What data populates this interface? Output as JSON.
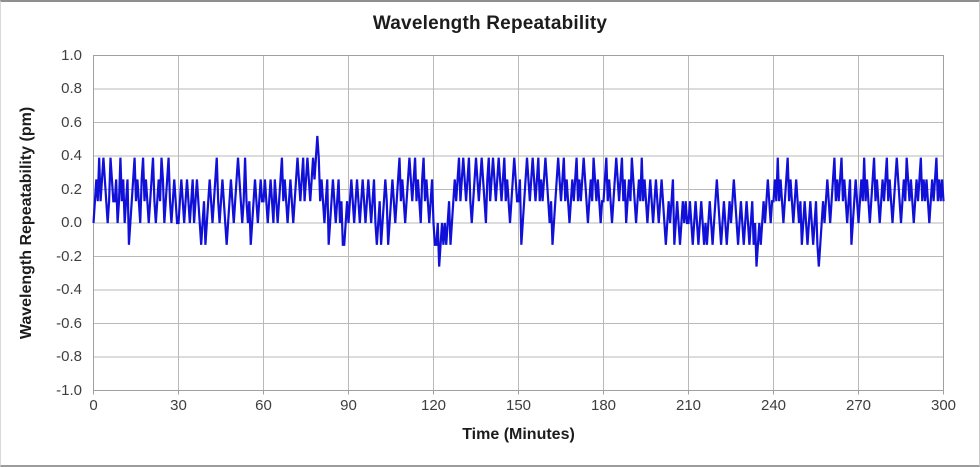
{
  "frame": {
    "background": "#ffffff",
    "border_color": "#9c9c9c"
  },
  "chart_data": {
    "type": "line",
    "title": "Wavelength Repeatability",
    "xlabel": "Time (Minutes)",
    "ylabel": "Wavelength Repeatability (pm)",
    "xlim": [
      0,
      300
    ],
    "ylim": [
      -1.0,
      1.0
    ],
    "x_tick_labels": [
      "0",
      "30",
      "60",
      "90",
      "120",
      "150",
      "180",
      "210",
      "240",
      "270",
      "300"
    ],
    "y_tick_labels": [
      "1.0",
      "0.8",
      "0.6",
      "0.4",
      "0.2",
      "0.0",
      "-0.2",
      "-0.4",
      "-0.6",
      "-0.8",
      "-1.0"
    ],
    "grid": "on",
    "legend": "none",
    "line_color": "#1010d8",
    "grid_color": "#b9b9b9",
    "axis_color": "#a0a0a0",
    "tick_label_color": "#3f3f3f",
    "series": [
      {
        "name": "Wavelength Repeatability",
        "x_start": 0,
        "x_step_minutes": 0.5,
        "values": [
          0,
          0.13,
          0.26,
          0.13,
          0.39,
          0.13,
          0.26,
          0.39,
          0.26,
          0.13,
          0,
          0.13,
          0.39,
          0.26,
          0.13,
          0.13,
          0.26,
          0,
          0.13,
          0.39,
          0.13,
          0.26,
          0,
          0.13,
          0.26,
          -0.13,
          0,
          0.13,
          0.26,
          0.39,
          0.13,
          0.26,
          0.13,
          0,
          0.26,
          0.39,
          0.13,
          0.26,
          0.13,
          0,
          0.13,
          0.26,
          0.39,
          0.13,
          0,
          0.13,
          0.26,
          0.13,
          0.39,
          0.26,
          0,
          0.13,
          0.26,
          0.39,
          0.13,
          0,
          0.13,
          0.26,
          0.13,
          0,
          0,
          0.13,
          0.26,
          0.13,
          0,
          0.13,
          0.26,
          0.13,
          0,
          0.13,
          0.26,
          0,
          0.13,
          0.26,
          0.13,
          0,
          -0.13,
          0,
          0.13,
          -0.13,
          0,
          0.13,
          0.26,
          0.13,
          0,
          0.13,
          0.26,
          0.39,
          0.13,
          0,
          0.13,
          0.26,
          0.13,
          0,
          -0.13,
          0,
          0.13,
          0.26,
          0.13,
          0,
          0.13,
          0.26,
          0.39,
          0.26,
          0.13,
          0,
          0.13,
          0.39,
          0.13,
          0,
          0.13,
          -0.13,
          0,
          0.13,
          0.26,
          0.13,
          0,
          0.13,
          0.26,
          0.13,
          0.13,
          0.26,
          0.13,
          0,
          0.13,
          0.26,
          0.13,
          0,
          0.26,
          0.13,
          0,
          0.13,
          0.26,
          0.39,
          0.13,
          0.26,
          0.13,
          0,
          0.13,
          0.26,
          0.13,
          0,
          0.13,
          0.26,
          0.39,
          0.26,
          0.13,
          0.26,
          0.39,
          0.13,
          0.26,
          0.39,
          0.26,
          0.13,
          0.26,
          0.39,
          0.26,
          0.39,
          0.52,
          0.39,
          0.13,
          0.26,
          0.13,
          0,
          0.13,
          0.26,
          -0.13,
          0,
          0.13,
          0.26,
          0.13,
          0,
          0.13,
          0.26,
          0,
          0.13,
          -0.13,
          -0.13,
          0,
          0.13,
          0,
          0.13,
          0.26,
          0.13,
          0,
          0.13,
          0.26,
          0.13,
          0,
          0.13,
          0.26,
          0.13,
          0,
          0.13,
          0.26,
          0.13,
          0,
          0.13,
          0.26,
          0,
          -0.13,
          0,
          0.13,
          -0.13,
          0,
          0.13,
          0.26,
          0.13,
          -0.13,
          0,
          0.13,
          0.26,
          0.13,
          0,
          0.13,
          0.26,
          0.39,
          0.13,
          0.26,
          0.13,
          0,
          0.13,
          0.26,
          0.39,
          0.26,
          0.13,
          0.26,
          0.39,
          0.13,
          0.26,
          0.13,
          0,
          0.26,
          0.39,
          0.13,
          0.26,
          0.13,
          0,
          0.13,
          0.26,
          0,
          -0.13,
          -0.13,
          0,
          -0.26,
          -0.13,
          0,
          -0.13,
          0,
          -0.13,
          0,
          0.13,
          -0.13,
          0,
          0.13,
          0.26,
          0.13,
          0.26,
          0.39,
          0.13,
          0.26,
          0.39,
          0.26,
          0.13,
          0.26,
          0.39,
          0.13,
          0,
          0.13,
          0.26,
          0.39,
          0.26,
          0.13,
          0.26,
          0.39,
          0.26,
          0.13,
          0,
          0.26,
          0.39,
          0.13,
          0.26,
          0.39,
          0.26,
          0.13,
          0.26,
          0.39,
          0.26,
          0.13,
          0.26,
          0.39,
          0.13,
          0.26,
          0.13,
          0,
          0.13,
          0.26,
          0.39,
          0.26,
          0.13,
          0.13,
          0.26,
          -0.13,
          0,
          0.13,
          0.26,
          0.39,
          0.26,
          0.13,
          0.26,
          0.39,
          0.26,
          0.13,
          0.26,
          0.39,
          0.13,
          0.26,
          0.13,
          0.26,
          0.39,
          0.26,
          0.13,
          0,
          0.13,
          -0.13,
          0,
          0.13,
          0.26,
          0.39,
          0.26,
          0.13,
          0.26,
          0.39,
          0.13,
          0.26,
          0.13,
          0,
          0.13,
          0.26,
          0.13,
          0.26,
          0.39,
          0.13,
          0.26,
          0.13,
          0.26,
          0.39,
          0.26,
          0.13,
          0,
          0.13,
          0.26,
          0.13,
          0.39,
          0.26,
          0.13,
          0.26,
          0.13,
          0,
          0.13,
          0.13,
          0.26,
          0.39,
          0.13,
          0.26,
          0.13,
          0,
          0.13,
          0.26,
          0.39,
          0.26,
          0.13,
          0.26,
          0.39,
          0.13,
          0.26,
          0,
          0.13,
          0.26,
          0.13,
          0.39,
          0.26,
          0.13,
          0,
          0.13,
          0.26,
          0.13,
          0.39,
          0.13,
          0.26,
          0.13,
          0,
          0.13,
          0.26,
          0.13,
          0,
          0.13,
          0.26,
          0.13,
          0,
          0.13,
          0.26,
          0.13,
          0,
          -0.13,
          0,
          0.13,
          0,
          0.13,
          0.26,
          -0.13,
          0,
          0.13,
          0,
          -0.13,
          0,
          0.13,
          0,
          0.13,
          0,
          0,
          0.13,
          0,
          -0.13,
          0,
          0.13,
          0,
          -0.13,
          0,
          0.13,
          0,
          -0.13,
          0,
          -0.13,
          0,
          0.13,
          0,
          -0.13,
          0,
          0.13,
          0.26,
          0.13,
          0,
          -0.13,
          0,
          0.13,
          0,
          -0.13,
          0,
          0.13,
          0,
          0.13,
          0.26,
          0.13,
          0,
          -0.13,
          0,
          0.13,
          0,
          -0.13,
          0,
          0.13,
          0,
          -0.13,
          0,
          0.13,
          -0.13,
          0,
          -0.26,
          -0.13,
          0,
          -0.13,
          0,
          0.13,
          0,
          0.13,
          0.26,
          0.13,
          0,
          0.13,
          0.13,
          0.26,
          0.13,
          0.39,
          0.13,
          0.26,
          0.13,
          0,
          0.13,
          0.26,
          0.39,
          0.13,
          0.26,
          0.13,
          0,
          0.13,
          0.26,
          0.13,
          0,
          0.13,
          -0.13,
          0,
          0.13,
          0,
          -0.13,
          0,
          0.13,
          0,
          -0.13,
          0,
          0.13,
          -0.13,
          -0.26,
          -0.13,
          0,
          0.13,
          0,
          0.13,
          0.26,
          0.13,
          0,
          0.13,
          0.26,
          0.39,
          0.13,
          0.26,
          0.13,
          0.26,
          0.39,
          0.13,
          0.26,
          0.13,
          0,
          0.13,
          0.26,
          -0.13,
          0,
          0.13,
          0.26,
          0.13,
          0,
          0.13,
          0.26,
          0.13,
          0.39,
          0.13,
          0.26,
          0.13,
          0,
          0.13,
          0.26,
          0.39,
          0.13,
          0.26,
          0.13,
          0,
          0.13,
          0.26,
          0.13,
          0.26,
          0.39,
          0.13,
          0.26,
          0.13,
          0,
          0.13,
          0.26,
          0.39,
          0.26,
          0.13,
          0,
          0.13,
          0.26,
          0.13,
          0.39,
          0.26,
          0.13,
          0.26,
          0.13,
          0,
          0.13,
          0.26,
          0.13,
          0.26,
          0.39,
          0.13,
          0.26,
          0.13,
          0.26,
          0.13,
          0,
          0.13,
          0.26,
          0.13,
          0.26,
          0.39,
          0.13,
          0.26,
          0.13,
          0.26,
          0.13
        ]
      }
    ]
  }
}
